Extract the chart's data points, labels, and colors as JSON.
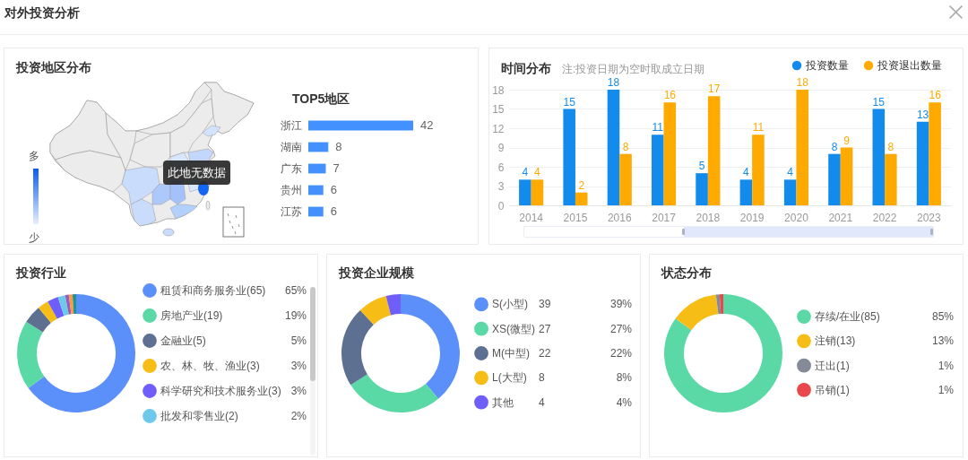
{
  "chart_data": [
    {
      "type": "other",
      "title": "对外投资分析"
    },
    {
      "type": "other",
      "title": "投资地区分布",
      "annotations": [
        "此地无数据",
        "多",
        "少"
      ]
    },
    {
      "type": "bar",
      "orientation": "horizontal",
      "title": "TOP5地区",
      "categories": [
        "浙江",
        "湖南",
        "广东",
        "贵州",
        "江苏"
      ],
      "values": [
        42,
        8,
        7,
        6,
        6
      ],
      "color": "#4291ff",
      "data_labels": true
    },
    {
      "type": "bar",
      "title": "时间分布",
      "subtitle": "注:投资日期为空时取成立日期",
      "categories": [
        "2014",
        "2015",
        "2016",
        "2017",
        "2018",
        "2019",
        "2020",
        "2021",
        "2022",
        "2023"
      ],
      "series": [
        {
          "name": "投资数量",
          "color": "#128bed",
          "values": [
            4,
            15,
            18,
            11,
            5,
            4,
            4,
            8,
            15,
            13
          ]
        },
        {
          "name": "投资退出数量",
          "color": "#ffaa00",
          "values": [
            4,
            2,
            8,
            16,
            17,
            11,
            18,
            9,
            8,
            16
          ]
        }
      ],
      "ylim": [
        0,
        18
      ],
      "yticks": [
        0,
        3,
        6,
        9,
        12,
        15,
        18
      ],
      "grid": "y",
      "legend": "top right",
      "data_labels": true
    },
    {
      "type": "donut",
      "title": "投资行业",
      "categories": [
        "租赁和商务服务业(65)",
        "房地产业(19)",
        "金融业(5)",
        "农、林、牧、渔业(3)",
        "科学研究和技术服务业(3)",
        "批发和零售业(2)",
        null,
        null,
        null
      ],
      "values": [
        65,
        19,
        5,
        3,
        3,
        2,
        1,
        1,
        1
      ],
      "colors": [
        "#5b8ff9",
        "#5ad8a6",
        "#5d7092",
        "#f6bd16",
        "#6f5ef9",
        "#6dc8ec",
        "#945fb9",
        "#ff9845",
        "#1e9493"
      ],
      "value_labels": [
        "65%",
        "19%",
        "5%",
        "3%",
        "3%",
        "2%",
        null,
        null,
        null
      ],
      "legend": "right"
    },
    {
      "type": "donut",
      "title": "投资企业规模",
      "categories": [
        "S(小型)",
        "XS(微型)",
        "M(中型)",
        "L(大型)",
        "其他"
      ],
      "values": [
        39,
        27,
        22,
        8,
        4
      ],
      "colors": [
        "#5b8ff9",
        "#5ad8a6",
        "#5d7092",
        "#f6bd16",
        "#6f5ef9"
      ],
      "value_labels": [
        "39%",
        "27%",
        "22%",
        "8%",
        "4%"
      ],
      "annotations": [
        "39",
        "27",
        "22",
        "8",
        "4"
      ],
      "legend": "right"
    },
    {
      "type": "donut",
      "title": "状态分布",
      "categories": [
        "存续/在业(85)",
        "注销(13)",
        "迁出(1)",
        "吊销(1)"
      ],
      "values": [
        85,
        13,
        1,
        1
      ],
      "colors": [
        "#5ad8a6",
        "#f6bd16",
        "#858a99",
        "#e8474c"
      ],
      "value_labels": [
        "85%",
        "13%",
        "1%",
        "1%"
      ],
      "legend": "right"
    }
  ]
}
